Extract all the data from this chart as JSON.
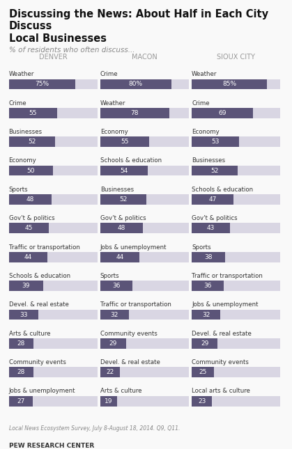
{
  "title": "Discussing the News: About Half in Each City Discuss\nLocal Businesses",
  "subtitle": "% of residents who often discuss...",
  "footnote": "Local News Ecosystem Survey, July 8-August 18, 2014. Q9, Q11.",
  "source": "PEW RESEARCH CENTER",
  "columns": [
    "DENVER",
    "MACON",
    "SIOUX CITY"
  ],
  "denver": {
    "labels": [
      "Weather",
      "Crime",
      "Businesses",
      "Economy",
      "Sports",
      "Gov't & politics",
      "Traffic or transportation",
      "Schools & education",
      "Devel. & real estate",
      "Arts & culture",
      "Community events",
      "Jobs & unemployment"
    ],
    "values": [
      75,
      55,
      52,
      50,
      48,
      45,
      44,
      39,
      33,
      28,
      28,
      27
    ]
  },
  "macon": {
    "labels": [
      "Crime",
      "Weather",
      "Economy",
      "Schools & education",
      "Businesses",
      "Gov't & politics",
      "Jobs & unemployment",
      "Sports",
      "Traffic or transportation",
      "Community events",
      "Devel. & real estate",
      "Arts & culture"
    ],
    "values": [
      80,
      78,
      55,
      54,
      52,
      48,
      44,
      36,
      32,
      29,
      22,
      19
    ]
  },
  "sioux_city": {
    "labels": [
      "Weather",
      "Crime",
      "Economy",
      "Businesses",
      "Schools & education",
      "Gov't & politics",
      "Sports",
      "Traffic or transportation",
      "Jobs & unemployment",
      "Devel. & real estate",
      "Community events",
      "Local arts & culture"
    ],
    "values": [
      85,
      69,
      53,
      52,
      47,
      43,
      38,
      36,
      32,
      29,
      25,
      23
    ]
  },
  "bar_color_dark": "#5b5478",
  "bar_color_light": "#d9d6e3",
  "bar_color_top": "#5b5478",
  "text_color_bar": "#ffffff",
  "text_color_label": "#333333",
  "background_color": "#f9f9f9",
  "col_header_color": "#999999",
  "max_val": 100,
  "bar_height": 0.022
}
